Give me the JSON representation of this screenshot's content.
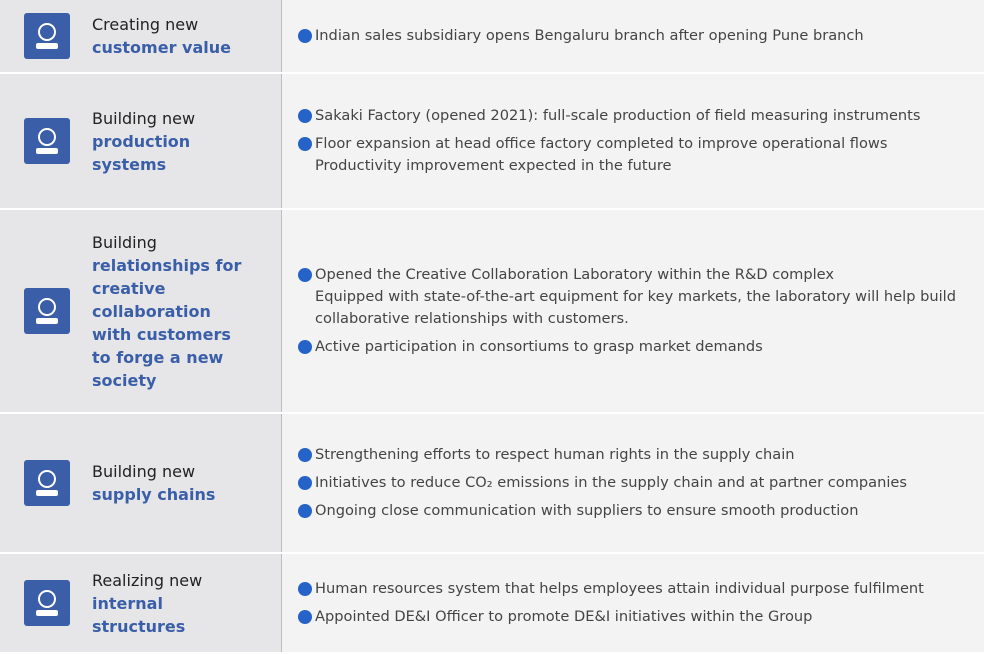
{
  "rows": [
    {
      "label": {
        "plain": "Creating new",
        "bold": "customer value"
      },
      "items": [
        [
          "Indian sales subsidiary opens Bengaluru branch after opening Pune branch"
        ]
      ]
    },
    {
      "label": {
        "plain": "Building new",
        "bold": "production systems"
      },
      "items": [
        [
          "Sakaki Factory (opened 2021): full-scale production of field measuring instruments"
        ],
        [
          "Floor expansion at head office factory completed to improve operational flows",
          "Productivity improvement expected in the future"
        ]
      ]
    },
    {
      "label": {
        "plain": "Building",
        "bold": "relationships for creative collaboration with customers to forge a new society"
      },
      "items": [
        [
          "Opened the Creative Collaboration Laboratory within the R&D complex",
          "Equipped with state-of-the-art equipment for key markets, the laboratory will help build collaborative relationships with customers."
        ],
        [
          "Active participation in consortiums to grasp market demands"
        ]
      ]
    },
    {
      "label": {
        "plain": "Building new",
        "bold": "supply chains"
      },
      "items": [
        [
          "Strengthening efforts to respect human rights in the supply chain"
        ],
        [
          "Initiatives to reduce CO₂ emissions in the supply chain and at partner companies"
        ],
        [
          "Ongoing close communication with suppliers to ensure smooth production"
        ]
      ]
    },
    {
      "label": {
        "plain": "Realizing new",
        "bold": "internal structures"
      },
      "items": [
        [
          "Human resources system that helps employees attain individual purpose fulfilment"
        ],
        [
          "Appointed DE&I Officer to promote DE&I initiatives within the Group"
        ]
      ]
    }
  ]
}
